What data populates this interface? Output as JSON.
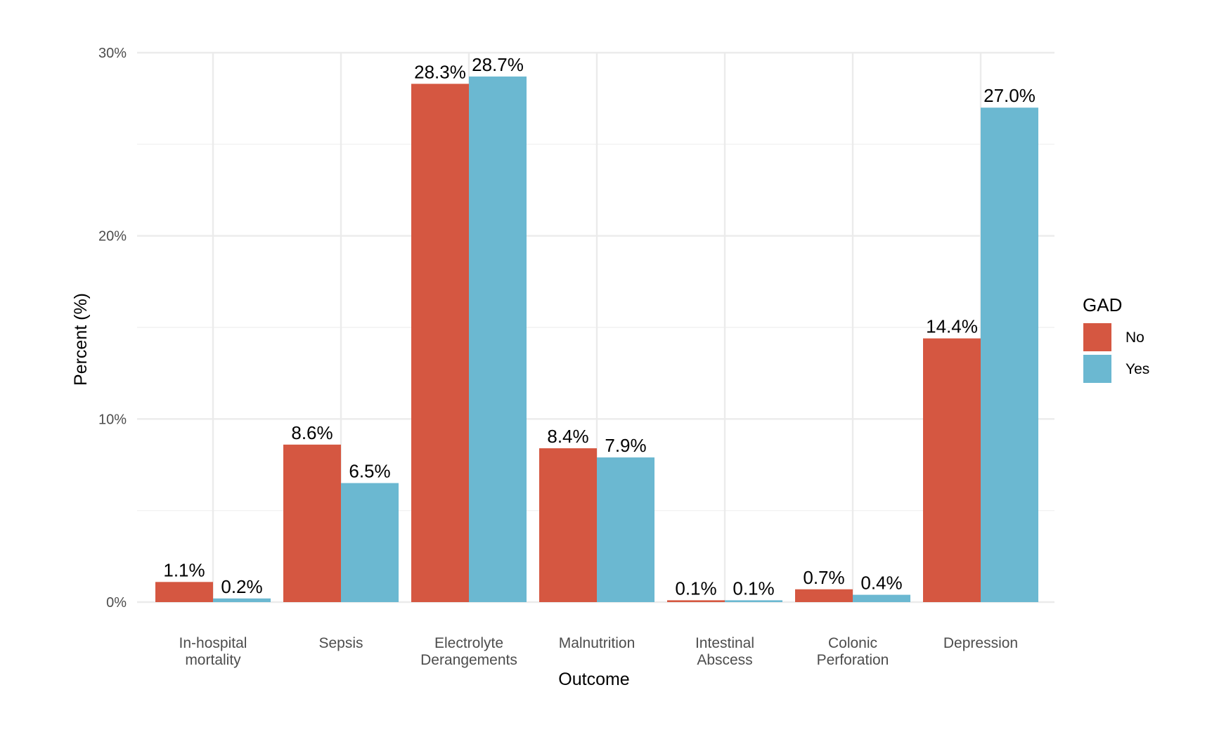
{
  "chart_data": {
    "type": "bar",
    "title": "",
    "xlabel": "Outcome",
    "ylabel": "Percent (%)",
    "ylim": [
      0,
      30
    ],
    "y_ticks": [
      {
        "value": 0,
        "label": "0%"
      },
      {
        "value": 10,
        "label": "10%"
      },
      {
        "value": 20,
        "label": "20%"
      },
      {
        "value": 30,
        "label": "30%"
      }
    ],
    "grid": true,
    "categories": [
      [
        "In-hospital",
        "mortality"
      ],
      [
        "Sepsis"
      ],
      [
        "Electrolyte",
        "Derangements"
      ],
      [
        "Malnutrition"
      ],
      [
        "Intestinal",
        "Abscess"
      ],
      [
        "Colonic",
        "Perforation"
      ],
      [
        "Depression"
      ]
    ],
    "series": [
      {
        "name": "No",
        "color": "#D55741",
        "values": [
          1.1,
          8.6,
          28.3,
          8.4,
          0.1,
          0.7,
          14.4
        ],
        "labels": [
          "1.1%",
          "8.6%",
          "28.3%",
          "8.4%",
          "0.1%",
          "0.7%",
          "14.4%"
        ]
      },
      {
        "name": "Yes",
        "color": "#6BB8D1",
        "values": [
          0.2,
          6.5,
          28.7,
          7.9,
          0.1,
          0.4,
          27.0
        ],
        "labels": [
          "0.2%",
          "6.5%",
          "28.7%",
          "7.9%",
          "0.1%",
          "0.4%",
          "27.0%"
        ]
      }
    ],
    "legend": {
      "title": "GAD",
      "placement": "right"
    }
  }
}
